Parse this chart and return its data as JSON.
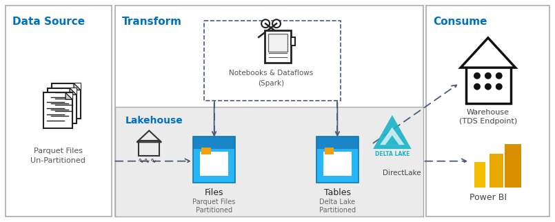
{
  "bg_color": "#ffffff",
  "title_color": "#0070c0",
  "dashed_color": "#4a5a7a",
  "border_color": "#aaaaaa",
  "labels": {
    "data_source": "Data Source",
    "transform": "Transform",
    "consume": "Consume",
    "lakehouse": "Lakehouse",
    "parquet_files": "Parquet Files\nUn-Partitioned",
    "notebooks": "Notebooks & Dataflows\n(Spark)",
    "files": "Files",
    "files_sub": "Parquet Files\nPartitioned",
    "tables": "Tables",
    "tables_sub": "Delta Lake\nPartitioned",
    "warehouse": "Warehouse\n(TDS Endpoint)",
    "powerbi": "Power BI",
    "directlake": "DirectLake"
  }
}
